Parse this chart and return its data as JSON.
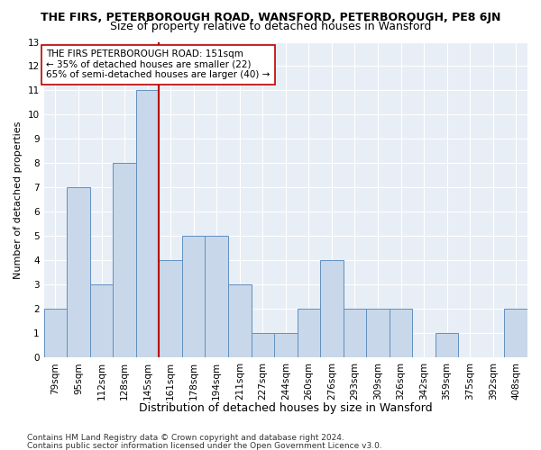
{
  "title": "THE FIRS, PETERBOROUGH ROAD, WANSFORD, PETERBOROUGH, PE8 6JN",
  "subtitle": "Size of property relative to detached houses in Wansford",
  "xlabel": "Distribution of detached houses by size in Wansford",
  "ylabel": "Number of detached properties",
  "categories": [
    "79sqm",
    "95sqm",
    "112sqm",
    "128sqm",
    "145sqm",
    "161sqm",
    "178sqm",
    "194sqm",
    "211sqm",
    "227sqm",
    "244sqm",
    "260sqm",
    "276sqm",
    "293sqm",
    "309sqm",
    "326sqm",
    "342sqm",
    "359sqm",
    "375sqm",
    "392sqm",
    "408sqm"
  ],
  "values": [
    2,
    7,
    3,
    8,
    11,
    4,
    5,
    5,
    3,
    1,
    1,
    2,
    4,
    2,
    2,
    2,
    0,
    1,
    0,
    0,
    2
  ],
  "bar_color": "#c8d8ea",
  "bar_edge_color": "#6090c0",
  "vline_index": 5,
  "vline_color": "#bb0000",
  "annotation_text": "THE FIRS PETERBOROUGH ROAD: 151sqm\n← 35% of detached houses are smaller (22)\n65% of semi-detached houses are larger (40) →",
  "annotation_box_color": "#ffffff",
  "annotation_box_edge": "#bb0000",
  "ylim": [
    0,
    13
  ],
  "yticks": [
    0,
    1,
    2,
    3,
    4,
    5,
    6,
    7,
    8,
    9,
    10,
    11,
    12,
    13
  ],
  "background_color": "#e8eef6",
  "grid_color": "#ffffff",
  "fig_background": "#ffffff",
  "footer1": "Contains HM Land Registry data © Crown copyright and database right 2024.",
  "footer2": "Contains public sector information licensed under the Open Government Licence v3.0.",
  "title_fontsize": 9,
  "subtitle_fontsize": 9,
  "annotation_fontsize": 7.5,
  "ylabel_fontsize": 8,
  "xlabel_fontsize": 9,
  "tick_fontsize": 7.5,
  "footer_fontsize": 6.5
}
